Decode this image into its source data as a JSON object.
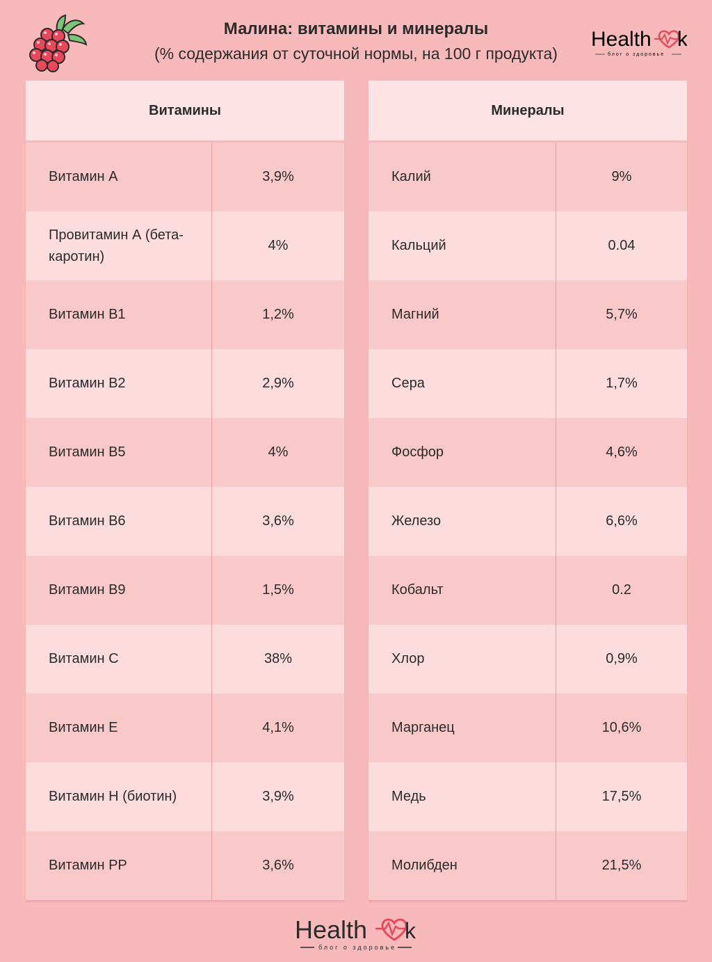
{
  "header": {
    "title": "Малина: витамины и минералы",
    "subtitle": "(% содержания от суточной нормы, на 100 г продукта)",
    "logo_word": "Health",
    "logo_k": "k",
    "logo_tagline": "блог о здоровье"
  },
  "vitamins": {
    "heading": "Витамины",
    "rows": [
      {
        "name": "Витамин А",
        "value": "3,9%"
      },
      {
        "name": "Провитамин А (бета-каротин)",
        "value": "4%"
      },
      {
        "name": "Витамин В1",
        "value": "1,2%"
      },
      {
        "name": "Витамин В2",
        "value": "2,9%"
      },
      {
        "name": "Витамин В5",
        "value": "4%"
      },
      {
        "name": "Витамин В6",
        "value": "3,6%"
      },
      {
        "name": "Витамин В9",
        "value": "1,5%"
      },
      {
        "name": "Витамин С",
        "value": "38%"
      },
      {
        "name": "Витамин Е",
        "value": "4,1%"
      },
      {
        "name": "Витамин Н (биотин)",
        "value": "3,9%"
      },
      {
        "name": "Витамин РР",
        "value": "3,6%"
      }
    ]
  },
  "minerals": {
    "heading": "Минералы",
    "rows": [
      {
        "name": "Калий",
        "value": "9%"
      },
      {
        "name": "Кальций",
        "value": "0.04"
      },
      {
        "name": "Магний",
        "value": "5,7%"
      },
      {
        "name": "Сера",
        "value": "1,7%"
      },
      {
        "name": "Фосфор",
        "value": "4,6%"
      },
      {
        "name": "Железо",
        "value": "6,6%"
      },
      {
        "name": "Кобальт",
        "value": "0.2"
      },
      {
        "name": "Хлор",
        "value": "0,9%"
      },
      {
        "name": "Марганец",
        "value": "10,6%"
      },
      {
        "name": "Медь",
        "value": "17,5%"
      },
      {
        "name": "Молибден",
        "value": "21,5%"
      }
    ]
  },
  "colors": {
    "background": "#f8b9bb",
    "row_odd": "#f9c9ca",
    "row_even": "#fcdcdc",
    "header_row": "#fde3e3",
    "heart": "#e8485a"
  },
  "icons": {
    "illustration": "raspberry-icon",
    "logo_heart": "heart-pulse-icon"
  }
}
